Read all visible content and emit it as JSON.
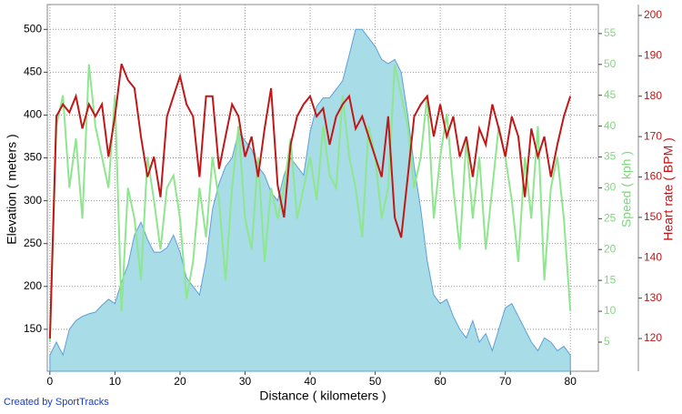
{
  "chart_data": {
    "type": "line",
    "x_label": "Distance ( kilometers )",
    "y_label": "Elevation ( meters )",
    "y2_label": "Speed ( kph )",
    "y3_label": "Heart rate ( BPM )",
    "credit": "Created by SportTracks",
    "grid": true,
    "xlim": [
      -0.4,
      84.3
    ],
    "xticks": [
      0,
      10,
      20,
      30,
      40,
      50,
      60,
      70,
      80
    ],
    "ylim": [
      101,
      529
    ],
    "yticks": [
      150,
      200,
      250,
      300,
      350,
      400,
      450,
      500
    ],
    "y2lim": [
      0.28,
      59.7
    ],
    "y2ticks": [
      5,
      10,
      15,
      20,
      25,
      30,
      35,
      40,
      45,
      50,
      55
    ],
    "y3lim": [
      111.9,
      202.7
    ],
    "y3ticks": [
      120,
      130,
      140,
      150,
      160,
      170,
      180,
      190,
      200
    ],
    "x": [
      0,
      1,
      2,
      3,
      4,
      5,
      6,
      7,
      8,
      9,
      10,
      11,
      12,
      13,
      14,
      15,
      16,
      17,
      18,
      19,
      20,
      21,
      22,
      23,
      24,
      25,
      26,
      27,
      28,
      29,
      30,
      31,
      32,
      33,
      34,
      35,
      36,
      37,
      38,
      39,
      40,
      41,
      42,
      43,
      44,
      45,
      46,
      47,
      48,
      49,
      50,
      51,
      52,
      53,
      54,
      55,
      56,
      57,
      58,
      59,
      60,
      61,
      62,
      63,
      64,
      65,
      66,
      67,
      68,
      69,
      70,
      71,
      72,
      73,
      74,
      75,
      76,
      77,
      78,
      79,
      80
    ],
    "series": [
      {
        "name": "Elevation",
        "type": "area",
        "axis": "y",
        "color": "#a8dce6",
        "edge": "#5aa0d8",
        "values": [
          120,
          135,
          120,
          150,
          160,
          165,
          168,
          170,
          178,
          185,
          180,
          205,
          225,
          260,
          275,
          255,
          240,
          240,
          245,
          260,
          240,
          210,
          200,
          190,
          230,
          290,
          320,
          340,
          350,
          380,
          370,
          360,
          340,
          330,
          310,
          300,
          330,
          350,
          340,
          330,
          380,
          410,
          420,
          420,
          430,
          440,
          470,
          500,
          500,
          490,
          480,
          465,
          460,
          465,
          450,
          400,
          340,
          290,
          230,
          190,
          180,
          185,
          165,
          150,
          140,
          160,
          135,
          145,
          125,
          150,
          175,
          180,
          165,
          150,
          135,
          125,
          140,
          135,
          125,
          130,
          120
        ]
      },
      {
        "name": "Speed",
        "type": "line",
        "axis": "y2",
        "color": "#8ee68e",
        "values": [
          5,
          40,
          45,
          30,
          38,
          25,
          50,
          40,
          35,
          30,
          45,
          10,
          30,
          25,
          15,
          35,
          28,
          20,
          30,
          32,
          25,
          12,
          18,
          30,
          22,
          35,
          28,
          15,
          30,
          40,
          25,
          20,
          35,
          18,
          30,
          25,
          30,
          38,
          25,
          30,
          35,
          28,
          40,
          32,
          30,
          45,
          35,
          30,
          22,
          40,
          35,
          25,
          30,
          50,
          45,
          40,
          30,
          35,
          45,
          25,
          35,
          42,
          30,
          20,
          38,
          25,
          35,
          20,
          30,
          40,
          35,
          28,
          18,
          35,
          25,
          40,
          15,
          30,
          35,
          25,
          10
        ]
      },
      {
        "name": "Heart rate",
        "type": "line",
        "axis": "y3",
        "color": "#c01818",
        "values": [
          120,
          175,
          178,
          176,
          180,
          172,
          178,
          175,
          178,
          165,
          175,
          188,
          184,
          182,
          170,
          160,
          165,
          155,
          175,
          180,
          185,
          178,
          175,
          160,
          180,
          180,
          162,
          170,
          178,
          175,
          165,
          170,
          160,
          172,
          182,
          158,
          150,
          168,
          175,
          178,
          180,
          175,
          177,
          168,
          175,
          178,
          180,
          172,
          175,
          170,
          165,
          160,
          175,
          150,
          145,
          160,
          175,
          178,
          180,
          170,
          178,
          170,
          175,
          165,
          170,
          160,
          172,
          168,
          178,
          172,
          165,
          175,
          170,
          155,
          172,
          165,
          170,
          160,
          168,
          175,
          180
        ]
      }
    ]
  }
}
